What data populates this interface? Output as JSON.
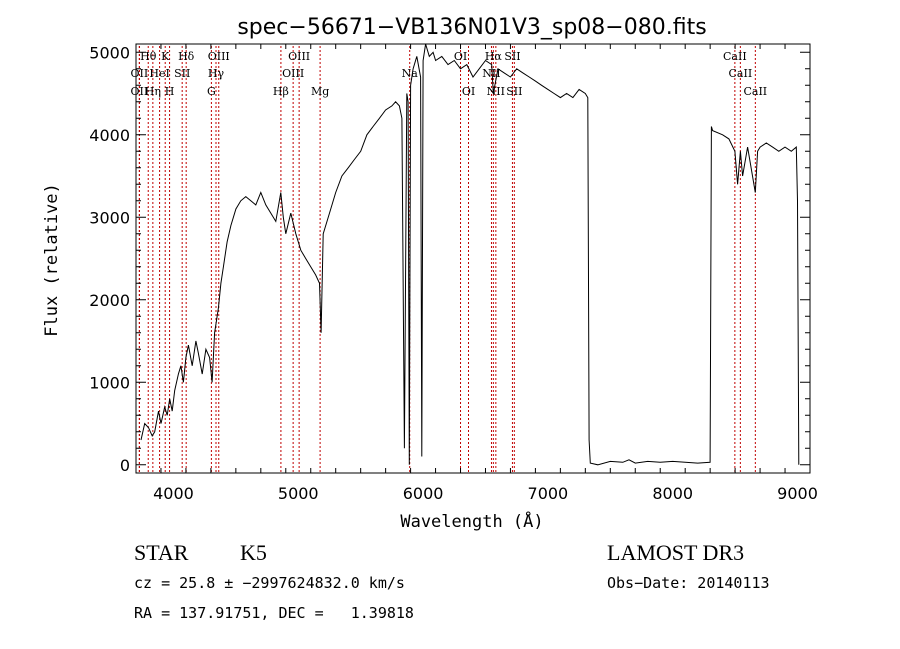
{
  "chart_data": {
    "type": "line",
    "title": "spec−56671−VB136N01V3_sp08−080.fits",
    "xlabel": "Wavelength (Å)",
    "ylabel": "Flux (relative)",
    "xlim": [
      3700,
      9100
    ],
    "ylim": [
      -100,
      5100
    ],
    "xticks": [
      4000,
      5000,
      6000,
      7000,
      8000,
      9000
    ],
    "yticks": [
      0,
      1000,
      2000,
      3000,
      4000,
      5000
    ],
    "grid": false,
    "series": [
      {
        "x": [
          3740,
          3770,
          3800,
          3830,
          3850,
          3880,
          3900,
          3930,
          3950,
          3970,
          3990,
          4010,
          4040,
          4060,
          4080,
          4100,
          4120,
          4150,
          4180,
          4200,
          4230,
          4260,
          4290,
          4310,
          4330,
          4340,
          4360,
          4380,
          4400,
          4430,
          4460,
          4500,
          4540,
          4580,
          4620,
          4660,
          4700,
          4740,
          4780,
          4820,
          4860,
          4880,
          4900,
          4940,
          4980,
          5020,
          5060,
          5100,
          5140,
          5170,
          5183,
          5200,
          5250,
          5300,
          5350,
          5400,
          5450,
          5500,
          5550,
          5600,
          5650,
          5700,
          5750,
          5780,
          5810,
          5830,
          5850,
          5870,
          5880,
          5890,
          5900,
          5920,
          5950,
          5980,
          5990,
          6000,
          6020,
          6050,
          6080,
          6100,
          6150,
          6200,
          6250,
          6300,
          6350,
          6400,
          6450,
          6500,
          6550,
          6563,
          6600,
          6650,
          6700,
          6750,
          6800,
          6850,
          6900,
          6950,
          7000,
          7050,
          7100,
          7150,
          7200,
          7250,
          7300,
          7320,
          7330,
          7340,
          7400,
          7500,
          7600,
          7650,
          7700,
          7800,
          7900,
          8000,
          8100,
          8200,
          8300,
          8310,
          8320,
          8400,
          8450,
          8498,
          8520,
          8542,
          8560,
          8600,
          8662,
          8680,
          8700,
          8750,
          8800,
          8850,
          8900,
          8950,
          8990,
          9000,
          9010
        ],
        "values": [
          300,
          500,
          450,
          350,
          400,
          650,
          500,
          700,
          600,
          800,
          650,
          900,
          1100,
          1200,
          1000,
          1300,
          1450,
          1200,
          1500,
          1350,
          1100,
          1400,
          1300,
          1000,
          1600,
          1700,
          1900,
          2200,
          2400,
          2700,
          2900,
          3100,
          3200,
          3250,
          3200,
          3150,
          3300,
          3150,
          3050,
          2950,
          3300,
          3000,
          2800,
          3050,
          2800,
          2600,
          2500,
          2400,
          2300,
          2200,
          1600,
          2800,
          3050,
          3300,
          3500,
          3600,
          3700,
          3800,
          4000,
          4100,
          4200,
          4300,
          4350,
          4400,
          4350,
          4200,
          200,
          4500,
          4400,
          0,
          4600,
          4800,
          4950,
          4700,
          100,
          4900,
          5100,
          4950,
          5000,
          4900,
          4950,
          4850,
          4900,
          4800,
          4850,
          4700,
          4800,
          4900,
          4850,
          4500,
          4800,
          4750,
          4700,
          4800,
          4750,
          4700,
          4650,
          4600,
          4550,
          4500,
          4450,
          4500,
          4450,
          4550,
          4500,
          4450,
          300,
          20,
          0,
          40,
          30,
          60,
          20,
          40,
          30,
          40,
          30,
          20,
          30,
          4100,
          4050,
          4000,
          3950,
          3800,
          3400,
          3800,
          3500,
          3850,
          3300,
          3800,
          3850,
          3900,
          3850,
          3800,
          3850,
          3800,
          3850,
          3200,
          0
        ]
      }
    ],
    "spectral_lines": [
      {
        "label": "Hθ",
        "x": 3798,
        "row": 0
      },
      {
        "label": "Hη",
        "x": 3835,
        "row": 2
      },
      {
        "label": "OII",
        "x": 3727,
        "row": 1
      },
      {
        "label": "OII",
        "x": 3727,
        "row": 2
      },
      {
        "label": "HeI",
        "x": 3889,
        "row": 1
      },
      {
        "label": "K",
        "x": 3934,
        "row": 0
      },
      {
        "label": "SII",
        "x": 4070,
        "row": 1
      },
      {
        "label": "H",
        "x": 3969,
        "row": 2
      },
      {
        "label": "Hδ",
        "x": 4102,
        "row": 0
      },
      {
        "label": "OIII",
        "x": 4363,
        "row": 0
      },
      {
        "label": "Hγ",
        "x": 4341,
        "row": 1
      },
      {
        "label": "G",
        "x": 4304,
        "row": 2
      },
      {
        "label": "OIII",
        "x": 5007,
        "row": 0
      },
      {
        "label": "OIII",
        "x": 4959,
        "row": 1
      },
      {
        "label": "Hβ",
        "x": 4861,
        "row": 2
      },
      {
        "label": "Mg",
        "x": 5175,
        "row": 2
      },
      {
        "label": "Na",
        "x": 5893,
        "row": 1
      },
      {
        "label": "OI",
        "x": 6300,
        "row": 0
      },
      {
        "label": "OI",
        "x": 6364,
        "row": 2
      },
      {
        "label": "Hα",
        "x": 6563,
        "row": 0
      },
      {
        "label": "NII",
        "x": 6548,
        "row": 1
      },
      {
        "label": "NII",
        "x": 6583,
        "row": 2
      },
      {
        "label": "SII",
        "x": 6716,
        "row": 0
      },
      {
        "label": "SII",
        "x": 6731,
        "row": 2
      },
      {
        "label": "CaII",
        "x": 8498,
        "row": 0
      },
      {
        "label": "CaII",
        "x": 8542,
        "row": 1
      },
      {
        "label": "CaII",
        "x": 8662,
        "row": 2
      }
    ],
    "line_marker_color": "#c00000"
  },
  "info": {
    "class": "STAR",
    "subclass": "K5",
    "survey": "LAMOST DR3",
    "cz": "cz = 25.8 ± −2997624832.0 km/s",
    "obsdate": "Obs−Date: 20140113",
    "radec": "RA = 137.91751, DEC =   1.39818"
  }
}
